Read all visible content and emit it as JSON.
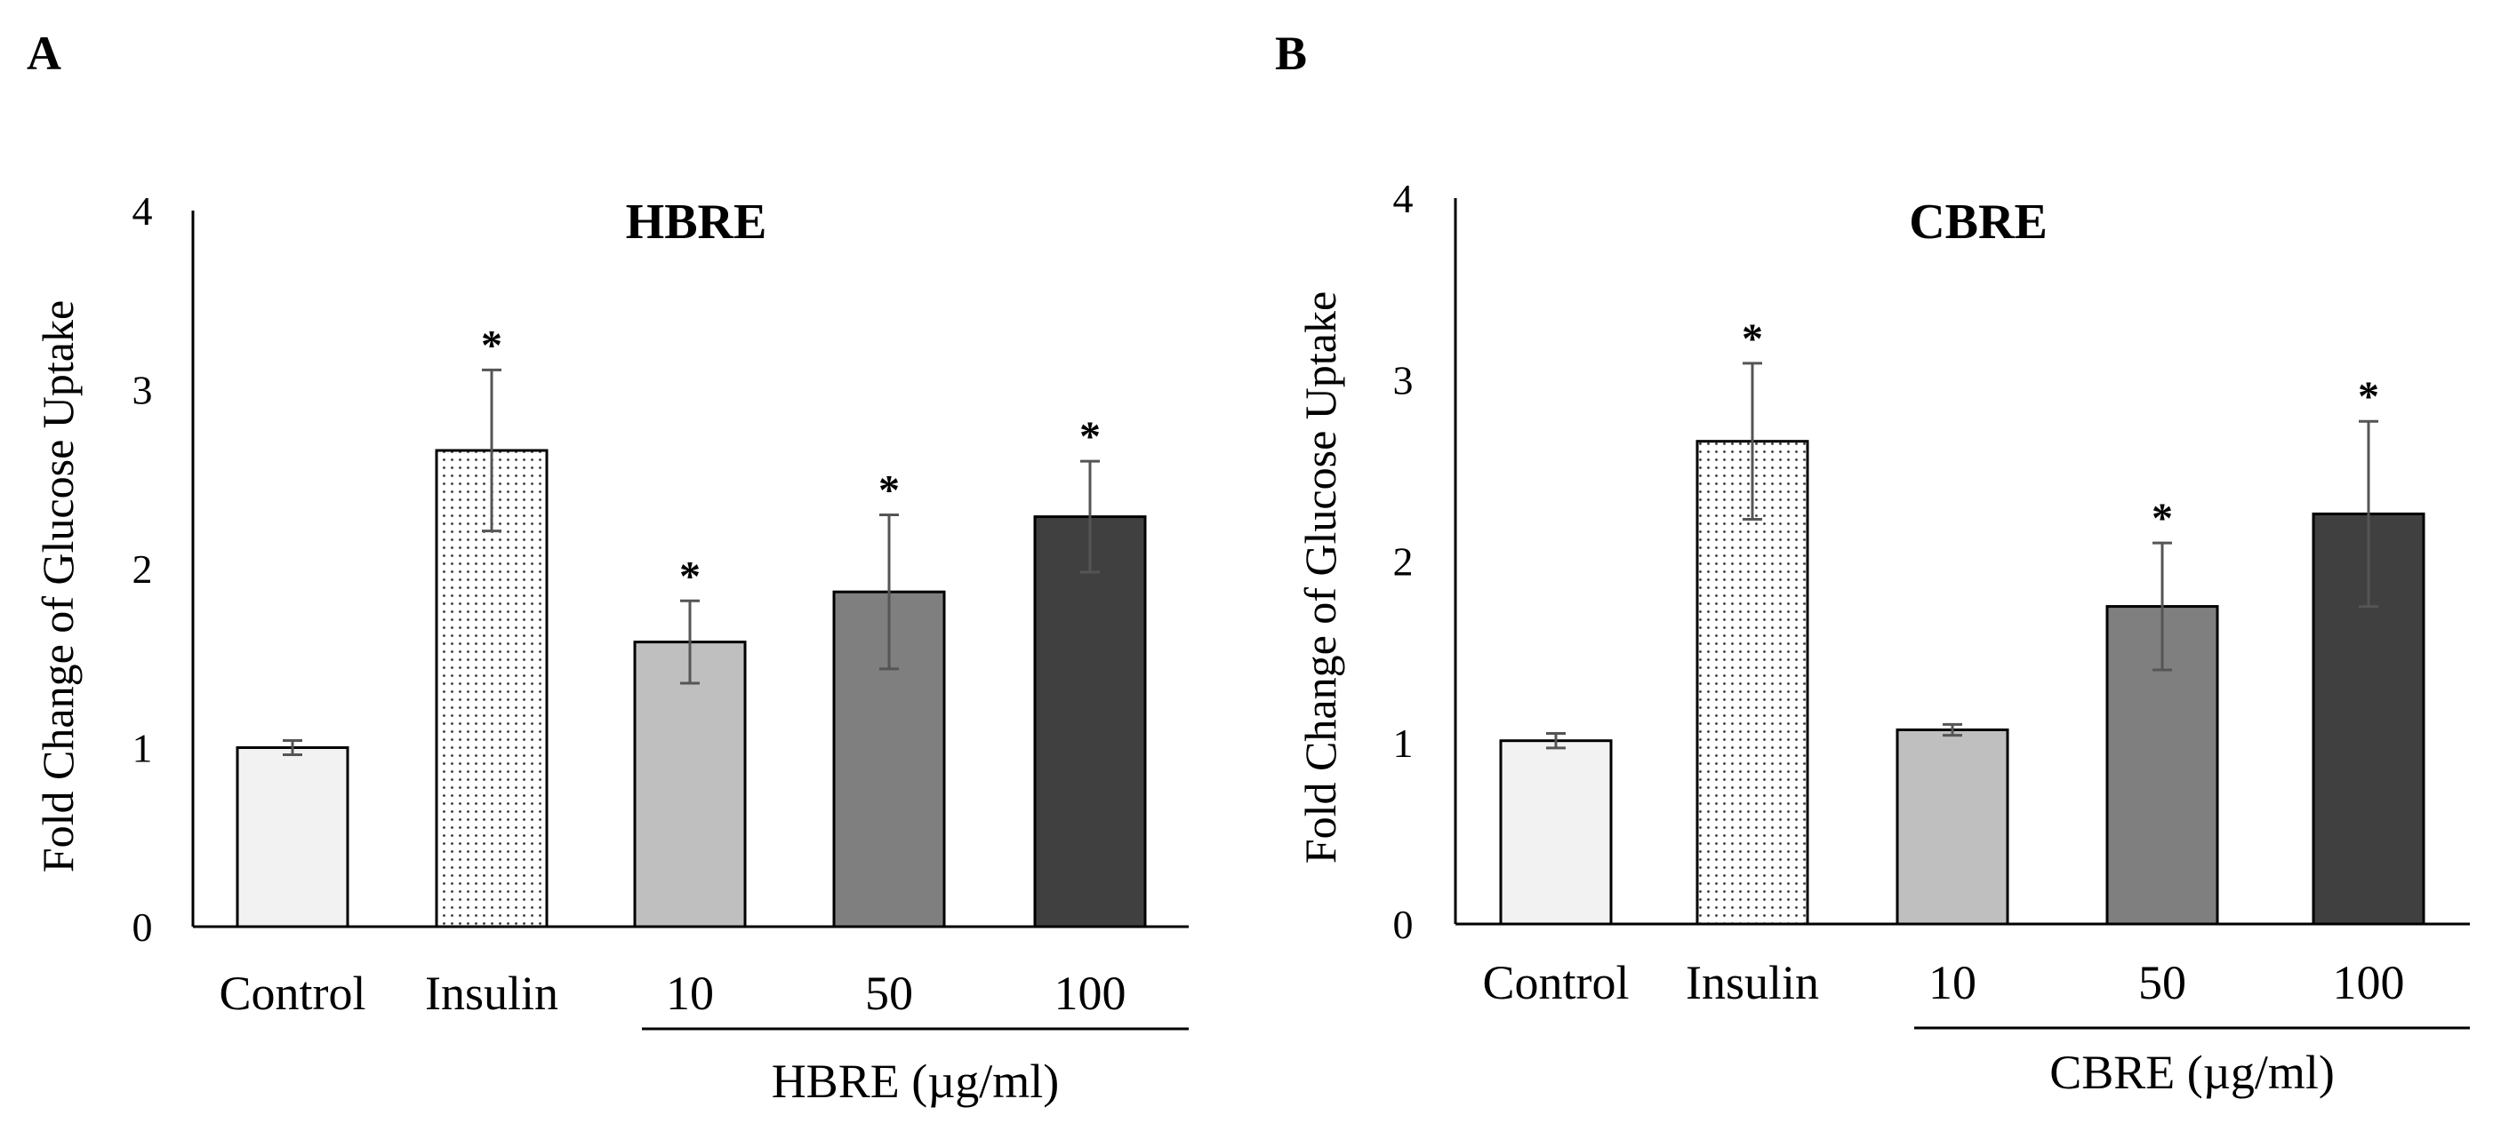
{
  "colors": {
    "control": "#f2f2f2",
    "insulin": "#ffffff",
    "dose10": "#bfbfbf",
    "dose50": "#7f7f7f",
    "dose100": "#404040",
    "outline": "#000000",
    "error_bar": "#555555"
  },
  "chart_data": [
    {
      "panel": "A",
      "type": "bar",
      "title": "HBRE",
      "ylabel": "Fold Change of Glucose Uptake",
      "xlabel": "HBRE (µg/ml)",
      "ylim": [
        0,
        4
      ],
      "yticks": [
        "0",
        "1",
        "2",
        "3",
        "4"
      ],
      "categories": [
        "Control",
        "Insulin",
        "10",
        "50",
        "100"
      ],
      "values": [
        1.0,
        2.66,
        1.59,
        1.87,
        2.29
      ],
      "errors": [
        0.04,
        0.45,
        0.23,
        0.43,
        0.31
      ],
      "significance": [
        "",
        "*",
        "*",
        "*",
        "*"
      ],
      "patterns": [
        "solid",
        "dotted",
        "solid",
        "solid",
        "solid"
      ],
      "color_keys": [
        "control",
        "insulin",
        "dose10",
        "dose50",
        "dose100"
      ]
    },
    {
      "panel": "B",
      "type": "bar",
      "title": "CBRE",
      "ylabel": "Fold Change of Glucose Uptake",
      "xlabel": "CBRE (µg/ml)",
      "ylim": [
        0,
        4
      ],
      "yticks": [
        "0",
        "1",
        "2",
        "3",
        "4"
      ],
      "categories": [
        "Control",
        "Insulin",
        "10",
        "50",
        "100"
      ],
      "values": [
        1.01,
        2.66,
        1.07,
        1.75,
        2.26
      ],
      "errors": [
        0.04,
        0.43,
        0.03,
        0.35,
        0.51
      ],
      "significance": [
        "",
        "*",
        "",
        "*",
        "*"
      ],
      "patterns": [
        "solid",
        "dotted",
        "solid",
        "solid",
        "solid"
      ],
      "color_keys": [
        "control",
        "insulin",
        "dose10",
        "dose50",
        "dose100"
      ]
    }
  ]
}
